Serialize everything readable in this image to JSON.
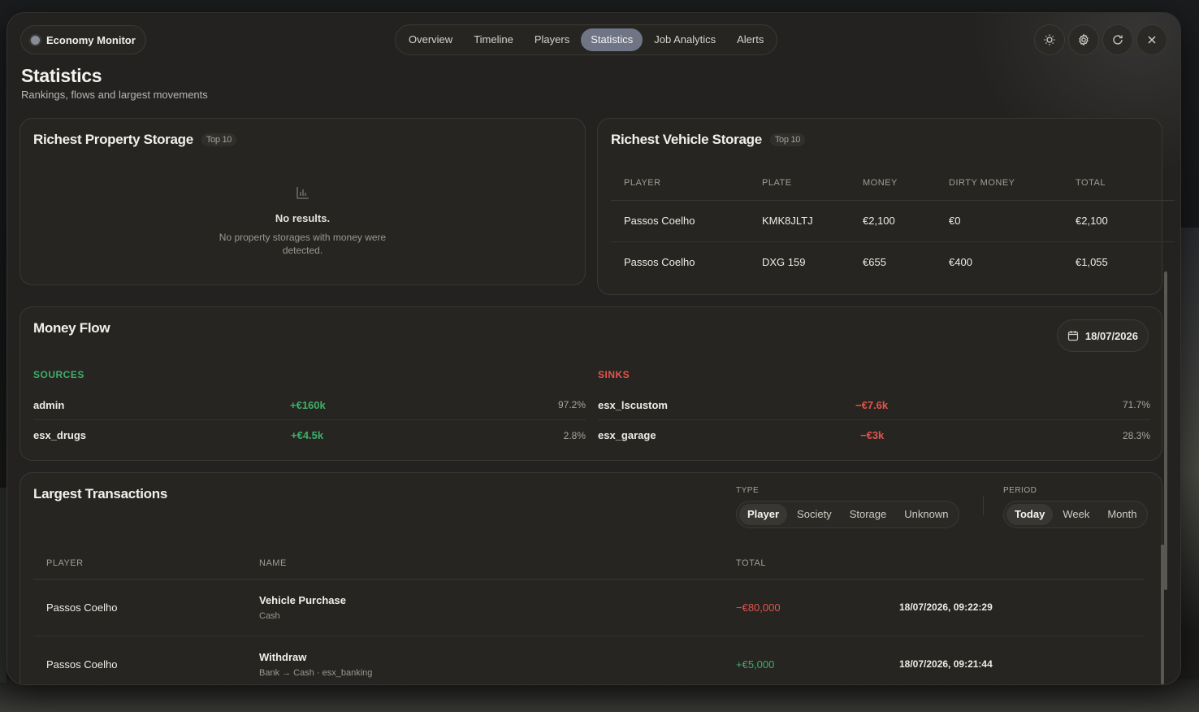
{
  "app": {
    "title": "Economy Monitor"
  },
  "tabs": [
    {
      "label": "Overview",
      "active": false
    },
    {
      "label": "Timeline",
      "active": false
    },
    {
      "label": "Players",
      "active": false
    },
    {
      "label": "Statistics",
      "active": true
    },
    {
      "label": "Job Analytics",
      "active": false
    },
    {
      "label": "Alerts",
      "active": false
    }
  ],
  "toolbar_icons": [
    "sun-icon",
    "gear-icon",
    "refresh-icon",
    "close-icon"
  ],
  "page": {
    "title": "Statistics",
    "subtitle": "Rankings, flows and largest movements"
  },
  "property_storage": {
    "title": "Richest Property Storage",
    "badge": "Top 10",
    "empty_title": "No results.",
    "empty_desc": "No property storages with money were detected."
  },
  "vehicle_storage": {
    "title": "Richest Vehicle Storage",
    "badge": "Top 10",
    "columns": [
      "PLAYER",
      "PLATE",
      "MONEY",
      "DIRTY MONEY",
      "TOTAL"
    ],
    "rows": [
      [
        "Passos Coelho",
        "KMK8JLTJ",
        "€2,100",
        "€0",
        "€2,100"
      ],
      [
        "Passos Coelho",
        "DXG 159",
        "€655",
        "€400",
        "€1,055"
      ]
    ]
  },
  "money_flow": {
    "title": "Money Flow",
    "date": "18/07/2026",
    "sources_label": "SOURCES",
    "sinks_label": "SINKS",
    "sources": [
      {
        "name": "admin",
        "amount": "+€160k",
        "pct": "97.2%"
      },
      {
        "name": "esx_drugs",
        "amount": "+€4.5k",
        "pct": "2.8%"
      }
    ],
    "sinks": [
      {
        "name": "esx_lscustom",
        "amount": "−€7.6k",
        "pct": "71.7%"
      },
      {
        "name": "esx_garage",
        "amount": "−€3k",
        "pct": "28.3%"
      }
    ]
  },
  "transactions": {
    "title": "Largest Transactions",
    "type_label": "TYPE",
    "type_options": [
      "Player",
      "Society",
      "Storage",
      "Unknown"
    ],
    "type_selected": "Player",
    "period_label": "PERIOD",
    "period_options": [
      "Today",
      "Week",
      "Month"
    ],
    "period_selected": "Today",
    "columns": [
      "PLAYER",
      "NAME",
      "TOTAL",
      ""
    ],
    "rows": [
      {
        "player": "Passos Coelho",
        "name": "Vehicle Purchase",
        "sub": "Cash",
        "total": "−€80,000",
        "sign": "neg",
        "time": "18/07/2026, 09:22:29"
      },
      {
        "player": "Passos Coelho",
        "name": "Withdraw",
        "sub": "Bank → Cash · esx_banking",
        "total": "+€5,000",
        "sign": "pos",
        "time": "18/07/2026, 09:21:44"
      }
    ]
  },
  "colors": {
    "accent_tab": "#6f7585",
    "positive": "#3fae6a",
    "negative": "#e2544d"
  }
}
